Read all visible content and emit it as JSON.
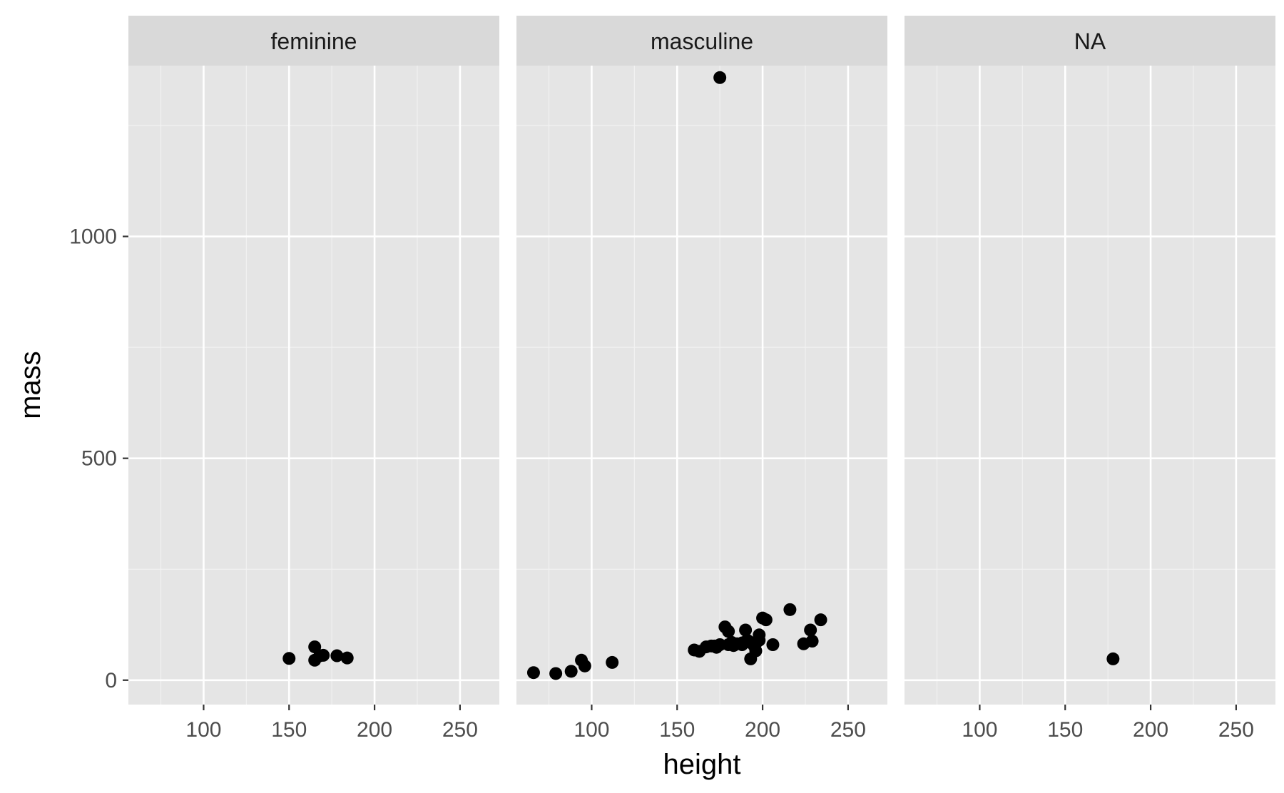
{
  "chart_data": {
    "type": "scatter",
    "xlabel": "height",
    "ylabel": "mass",
    "xlim": [
      56,
      273
    ],
    "ylim": [
      -55,
      1385
    ],
    "x_ticks": [
      100,
      150,
      200,
      250
    ],
    "y_ticks": [
      0,
      500,
      1000
    ],
    "x_tick_labels": [
      "100",
      "150",
      "200",
      "250"
    ],
    "y_tick_labels": [
      "0",
      "500",
      "1000"
    ],
    "grid": true,
    "point_color": "#000000",
    "panel_background": "#e5e5e5",
    "strip_background": "#d9d9d9",
    "facets": [
      {
        "label": "feminine",
        "points": [
          {
            "x": 150,
            "y": 49
          },
          {
            "x": 165,
            "y": 75
          },
          {
            "x": 165,
            "y": 45
          },
          {
            "x": 168,
            "y": 55
          },
          {
            "x": 170,
            "y": 56
          },
          {
            "x": 178,
            "y": 55
          },
          {
            "x": 184,
            "y": 50
          }
        ]
      },
      {
        "label": "masculine",
        "points": [
          {
            "x": 66,
            "y": 17
          },
          {
            "x": 79,
            "y": 15
          },
          {
            "x": 88,
            "y": 20
          },
          {
            "x": 94,
            "y": 45
          },
          {
            "x": 96,
            "y": 32
          },
          {
            "x": 112,
            "y": 40
          },
          {
            "x": 160,
            "y": 68
          },
          {
            "x": 163,
            "y": 65
          },
          {
            "x": 167,
            "y": 75
          },
          {
            "x": 170,
            "y": 77
          },
          {
            "x": 172,
            "y": 77
          },
          {
            "x": 173,
            "y": 74
          },
          {
            "x": 175,
            "y": 1358
          },
          {
            "x": 175,
            "y": 80
          },
          {
            "x": 178,
            "y": 120
          },
          {
            "x": 180,
            "y": 110
          },
          {
            "x": 180,
            "y": 80
          },
          {
            "x": 182,
            "y": 85
          },
          {
            "x": 183,
            "y": 78
          },
          {
            "x": 185,
            "y": 82
          },
          {
            "x": 188,
            "y": 84
          },
          {
            "x": 188,
            "y": 80
          },
          {
            "x": 190,
            "y": 113
          },
          {
            "x": 191,
            "y": 90
          },
          {
            "x": 193,
            "y": 48
          },
          {
            "x": 193,
            "y": 85
          },
          {
            "x": 195,
            "y": 78
          },
          {
            "x": 196,
            "y": 66
          },
          {
            "x": 196,
            "y": 83
          },
          {
            "x": 198,
            "y": 102
          },
          {
            "x": 198,
            "y": 90
          },
          {
            "x": 200,
            "y": 140
          },
          {
            "x": 202,
            "y": 136
          },
          {
            "x": 206,
            "y": 80
          },
          {
            "x": 216,
            "y": 159
          },
          {
            "x": 224,
            "y": 82
          },
          {
            "x": 228,
            "y": 113
          },
          {
            "x": 229,
            "y": 88
          },
          {
            "x": 234,
            "y": 136
          }
        ]
      },
      {
        "label": "NA",
        "points": [
          {
            "x": 178,
            "y": 48
          }
        ]
      }
    ]
  }
}
